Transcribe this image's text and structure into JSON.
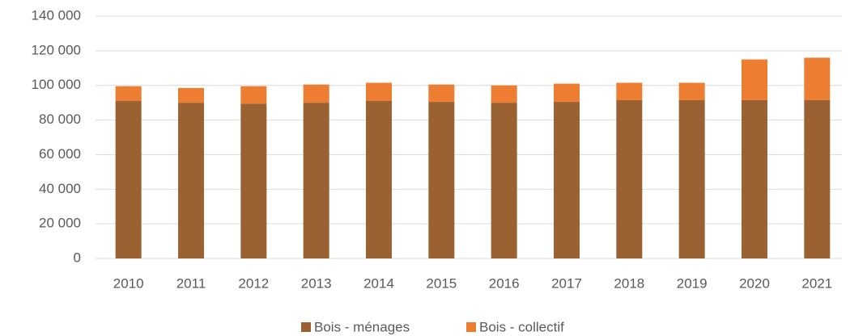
{
  "chart_data": {
    "type": "stacked_bar",
    "categories": [
      "2010",
      "2011",
      "2012",
      "2013",
      "2014",
      "2015",
      "2016",
      "2017",
      "2018",
      "2019",
      "2020",
      "2021"
    ],
    "series": [
      {
        "name": "Bois - ménages",
        "color": "#9a6233",
        "values": [
          91000,
          90000,
          89500,
          90000,
          91000,
          90500,
          90000,
          90500,
          91500,
          91500,
          91500,
          91500
        ]
      },
      {
        "name": "Bois - collectif",
        "color": "#ed7d31",
        "values": [
          8500,
          8500,
          10000,
          10500,
          10500,
          10000,
          10000,
          10500,
          10000,
          10000,
          23500,
          24500
        ]
      }
    ],
    "ylim": [
      0,
      140000
    ],
    "yticks": [
      0,
      {
        "value": 20000,
        "label": "20 000"
      },
      {
        "value": 40000,
        "label": "40 000"
      },
      {
        "value": 60000,
        "label": "60 000"
      },
      {
        "value": 80000,
        "label": "80 000"
      },
      {
        "value": 100000,
        "label": "100 000"
      },
      {
        "value": 120000,
        "label": "120 000"
      },
      {
        "value": 140000,
        "label": "140 000"
      }
    ],
    "grid": true,
    "legend": "bottom"
  }
}
